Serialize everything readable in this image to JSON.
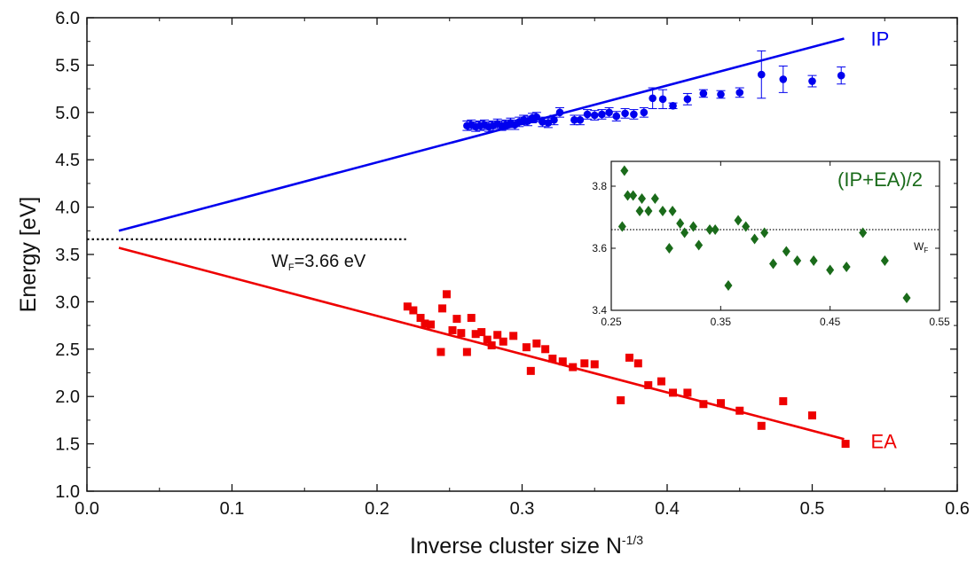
{
  "chart_data": [
    {
      "type": "scatter",
      "xlabel_main": "Inverse cluster size N",
      "xlabel_sup": "-1/3",
      "ylabel": "Energy [eV]",
      "xlim": [
        0,
        0.6
      ],
      "ylim": [
        1.0,
        6.0
      ],
      "xticks": [
        "0.0",
        "0.1",
        "0.2",
        "0.3",
        "0.4",
        "0.5",
        "0.6"
      ],
      "yticks": [
        "1.0",
        "1.5",
        "2.0",
        "2.5",
        "3.0",
        "3.5",
        "4.0",
        "4.5",
        "5.0",
        "5.5",
        "6.0"
      ],
      "grid": false,
      "series": [
        {
          "name": "IP",
          "color": "#0000ee",
          "marker": "circle",
          "fit_line": {
            "x": [
              0.022,
              0.522
            ],
            "y": [
              3.75,
              5.78
            ]
          },
          "points": [
            {
              "x": 0.262,
              "y": 4.86,
              "err": 0.05
            },
            {
              "x": 0.265,
              "y": 4.87,
              "err": 0.05
            },
            {
              "x": 0.268,
              "y": 4.85,
              "err": 0.05
            },
            {
              "x": 0.271,
              "y": 4.86,
              "err": 0.05
            },
            {
              "x": 0.274,
              "y": 4.87,
              "err": 0.05
            },
            {
              "x": 0.277,
              "y": 4.85,
              "err": 0.05
            },
            {
              "x": 0.28,
              "y": 4.86,
              "err": 0.05
            },
            {
              "x": 0.283,
              "y": 4.88,
              "err": 0.05
            },
            {
              "x": 0.286,
              "y": 4.86,
              "err": 0.05
            },
            {
              "x": 0.289,
              "y": 4.87,
              "err": 0.05
            },
            {
              "x": 0.292,
              "y": 4.89,
              "err": 0.05
            },
            {
              "x": 0.295,
              "y": 4.87,
              "err": 0.05
            },
            {
              "x": 0.298,
              "y": 4.9,
              "err": 0.05
            },
            {
              "x": 0.301,
              "y": 4.92,
              "err": 0.05
            },
            {
              "x": 0.304,
              "y": 4.91,
              "err": 0.05
            },
            {
              "x": 0.307,
              "y": 4.94,
              "err": 0.05
            },
            {
              "x": 0.31,
              "y": 4.95,
              "err": 0.05
            },
            {
              "x": 0.314,
              "y": 4.9,
              "err": 0.05
            },
            {
              "x": 0.318,
              "y": 4.89,
              "err": 0.05
            },
            {
              "x": 0.322,
              "y": 4.92,
              "err": 0.05
            },
            {
              "x": 0.326,
              "y": 5.0,
              "err": 0.05
            },
            {
              "x": 0.336,
              "y": 4.92,
              "err": 0.05
            },
            {
              "x": 0.34,
              "y": 4.92,
              "err": 0.05
            },
            {
              "x": 0.345,
              "y": 4.98,
              "err": 0.05
            },
            {
              "x": 0.35,
              "y": 4.97,
              "err": 0.05
            },
            {
              "x": 0.355,
              "y": 4.98,
              "err": 0.05
            },
            {
              "x": 0.36,
              "y": 5.0,
              "err": 0.05
            },
            {
              "x": 0.365,
              "y": 4.96,
              "err": 0.05
            },
            {
              "x": 0.371,
              "y": 4.99,
              "err": 0.05
            },
            {
              "x": 0.377,
              "y": 4.98,
              "err": 0.05
            },
            {
              "x": 0.384,
              "y": 5.0,
              "err": 0.05
            },
            {
              "x": 0.39,
              "y": 5.15,
              "err": 0.11
            },
            {
              "x": 0.397,
              "y": 5.14,
              "err": 0.1
            },
            {
              "x": 0.404,
              "y": 5.07,
              "err": 0.03
            },
            {
              "x": 0.414,
              "y": 5.14,
              "err": 0.06
            },
            {
              "x": 0.425,
              "y": 5.2,
              "err": 0.04
            },
            {
              "x": 0.437,
              "y": 5.19,
              "err": 0.04
            },
            {
              "x": 0.45,
              "y": 5.21,
              "err": 0.05
            },
            {
              "x": 0.465,
              "y": 5.4,
              "err": 0.25
            },
            {
              "x": 0.48,
              "y": 5.35,
              "err": 0.14
            },
            {
              "x": 0.5,
              "y": 5.33,
              "err": 0.06
            },
            {
              "x": 0.52,
              "y": 5.39,
              "err": 0.09
            }
          ]
        },
        {
          "name": "EA",
          "color": "#ee0000",
          "marker": "square",
          "fit_line": {
            "x": [
              0.022,
              0.522
            ],
            "y": [
              3.57,
              1.55
            ]
          },
          "points": [
            {
              "x": 0.221,
              "y": 2.95
            },
            {
              "x": 0.225,
              "y": 2.91
            },
            {
              "x": 0.23,
              "y": 2.83
            },
            {
              "x": 0.233,
              "y": 2.77
            },
            {
              "x": 0.237,
              "y": 2.76
            },
            {
              "x": 0.244,
              "y": 2.47
            },
            {
              "x": 0.245,
              "y": 2.93
            },
            {
              "x": 0.248,
              "y": 3.08
            },
            {
              "x": 0.252,
              "y": 2.7
            },
            {
              "x": 0.255,
              "y": 2.82
            },
            {
              "x": 0.258,
              "y": 2.67
            },
            {
              "x": 0.262,
              "y": 2.47
            },
            {
              "x": 0.265,
              "y": 2.83
            },
            {
              "x": 0.268,
              "y": 2.66
            },
            {
              "x": 0.272,
              "y": 2.68
            },
            {
              "x": 0.276,
              "y": 2.6
            },
            {
              "x": 0.279,
              "y": 2.54
            },
            {
              "x": 0.283,
              "y": 2.65
            },
            {
              "x": 0.287,
              "y": 2.58
            },
            {
              "x": 0.294,
              "y": 2.64
            },
            {
              "x": 0.303,
              "y": 2.52
            },
            {
              "x": 0.306,
              "y": 2.27
            },
            {
              "x": 0.31,
              "y": 2.56
            },
            {
              "x": 0.316,
              "y": 2.5
            },
            {
              "x": 0.321,
              "y": 2.4
            },
            {
              "x": 0.328,
              "y": 2.37
            },
            {
              "x": 0.335,
              "y": 2.31
            },
            {
              "x": 0.343,
              "y": 2.35
            },
            {
              "x": 0.35,
              "y": 2.34
            },
            {
              "x": 0.368,
              "y": 1.96
            },
            {
              "x": 0.374,
              "y": 2.41
            },
            {
              "x": 0.38,
              "y": 2.35
            },
            {
              "x": 0.387,
              "y": 2.12
            },
            {
              "x": 0.396,
              "y": 2.16
            },
            {
              "x": 0.404,
              "y": 2.04
            },
            {
              "x": 0.414,
              "y": 2.04
            },
            {
              "x": 0.425,
              "y": 1.92
            },
            {
              "x": 0.437,
              "y": 1.93
            },
            {
              "x": 0.45,
              "y": 1.85
            },
            {
              "x": 0.465,
              "y": 1.69
            },
            {
              "x": 0.48,
              "y": 1.95
            },
            {
              "x": 0.5,
              "y": 1.8
            },
            {
              "x": 0.523,
              "y": 1.5
            }
          ]
        }
      ],
      "reference_line": {
        "y": 3.66,
        "x": [
          0.0,
          0.22
        ],
        "style": "dotted",
        "label_main": "W",
        "label_sub": "F",
        "label_rest": "=3.66 eV"
      }
    },
    {
      "type": "scatter",
      "inset": true,
      "title": "(IP+EA)/2",
      "title_color": "#1a6b1a",
      "xlim": [
        0.25,
        0.55
      ],
      "ylim": [
        3.4,
        3.88
      ],
      "xticks": [
        "0.25",
        "0.35",
        "0.45",
        "0.55"
      ],
      "yticks": [
        "3.4",
        "3.6",
        "3.8"
      ],
      "series": [
        {
          "name": "(IP+EA)/2",
          "color": "#1a6b1a",
          "marker": "diamond",
          "points": [
            {
              "x": 0.26,
              "y": 3.67
            },
            {
              "x": 0.262,
              "y": 3.85
            },
            {
              "x": 0.265,
              "y": 3.77
            },
            {
              "x": 0.27,
              "y": 3.77
            },
            {
              "x": 0.276,
              "y": 3.72
            },
            {
              "x": 0.278,
              "y": 3.76
            },
            {
              "x": 0.284,
              "y": 3.72
            },
            {
              "x": 0.29,
              "y": 3.76
            },
            {
              "x": 0.297,
              "y": 3.72
            },
            {
              "x": 0.303,
              "y": 3.6
            },
            {
              "x": 0.306,
              "y": 3.72
            },
            {
              "x": 0.313,
              "y": 3.68
            },
            {
              "x": 0.317,
              "y": 3.65
            },
            {
              "x": 0.325,
              "y": 3.67
            },
            {
              "x": 0.33,
              "y": 3.61
            },
            {
              "x": 0.34,
              "y": 3.66
            },
            {
              "x": 0.345,
              "y": 3.66
            },
            {
              "x": 0.357,
              "y": 3.48
            },
            {
              "x": 0.366,
              "y": 3.69
            },
            {
              "x": 0.373,
              "y": 3.67
            },
            {
              "x": 0.381,
              "y": 3.63
            },
            {
              "x": 0.39,
              "y": 3.65
            },
            {
              "x": 0.398,
              "y": 3.55
            },
            {
              "x": 0.41,
              "y": 3.59
            },
            {
              "x": 0.42,
              "y": 3.56
            },
            {
              "x": 0.435,
              "y": 3.56
            },
            {
              "x": 0.45,
              "y": 3.53
            },
            {
              "x": 0.465,
              "y": 3.54
            },
            {
              "x": 0.48,
              "y": 3.65
            },
            {
              "x": 0.5,
              "y": 3.56
            },
            {
              "x": 0.52,
              "y": 3.44
            }
          ]
        }
      ],
      "reference_line": {
        "y": 3.66,
        "style": "dotted",
        "label_main": "W",
        "label_sub": "F"
      }
    }
  ]
}
